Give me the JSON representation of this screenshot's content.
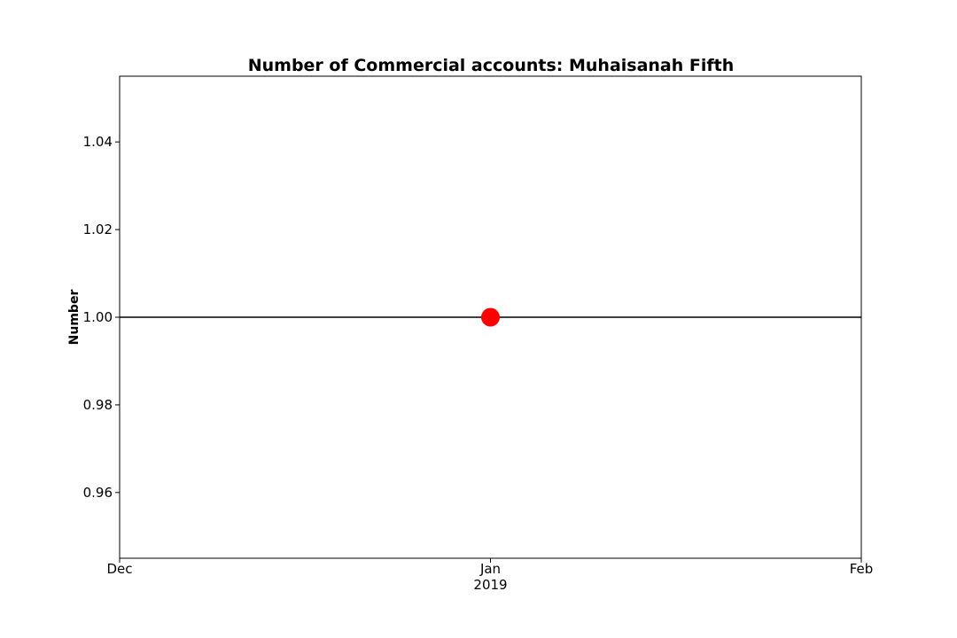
{
  "chart_data": {
    "type": "line",
    "title": "Number of Commercial accounts: Muhaisanah Fifth",
    "xlabel": "",
    "ylabel": "Number",
    "x_ticks": [
      {
        "value": "2018-12",
        "label": "Dec",
        "sublabel": ""
      },
      {
        "value": "2019-01",
        "label": "Jan",
        "sublabel": "2019"
      },
      {
        "value": "2019-02",
        "label": "Feb",
        "sublabel": ""
      }
    ],
    "y_ticks": [
      "0.96",
      "0.98",
      "1.00",
      "1.02",
      "1.04"
    ],
    "xlim": [
      "2018-12",
      "2019-02"
    ],
    "ylim": [
      0.945,
      1.055
    ],
    "grid": false,
    "horizontal_line": {
      "y": 1.0,
      "color": "#000000"
    },
    "series": [
      {
        "x": [
          "2019-01"
        ],
        "y": [
          1
        ],
        "color": "#ff0000",
        "marker": "circle"
      }
    ]
  }
}
